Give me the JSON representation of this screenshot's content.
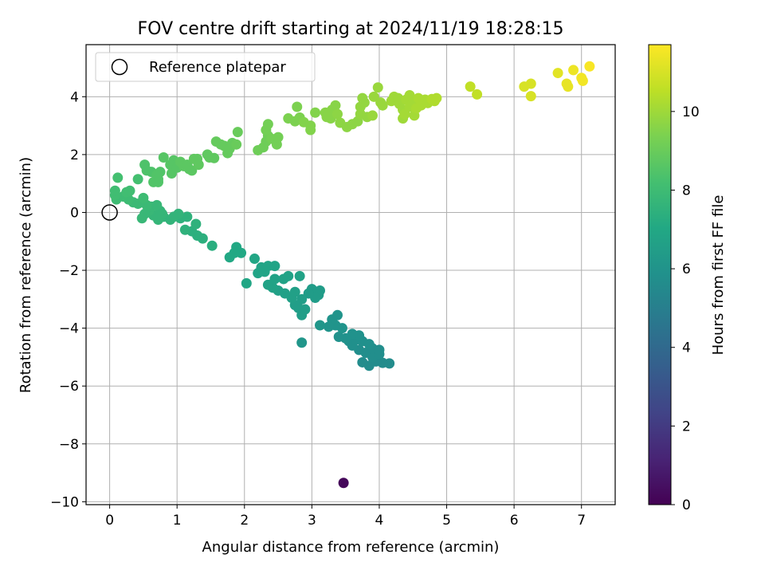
{
  "chart_data": {
    "type": "scatter",
    "title": "FOV centre drift starting at 2024/11/19 18:28:15",
    "xlabel": "Angular distance from reference (arcmin)",
    "ylabel": "Rotation from reference (arcmin)",
    "xlim": [
      -0.35,
      7.5
    ],
    "ylim": [
      -10.1,
      5.8
    ],
    "xticks": [
      0,
      1,
      2,
      3,
      4,
      5,
      6,
      7
    ],
    "yticks": [
      -10,
      -8,
      -6,
      -4,
      -2,
      0,
      2,
      4
    ],
    "xtick_labels": [
      "0",
      "1",
      "2",
      "3",
      "4",
      "5",
      "6",
      "7"
    ],
    "ytick_labels": [
      "−10",
      "−8",
      "−6",
      "−4",
      "−2",
      "0",
      "2",
      "4"
    ],
    "grid": true,
    "legend": {
      "position": "top-left",
      "entries": [
        "Reference platepar"
      ]
    },
    "reference_point": {
      "x": 0,
      "y": 0,
      "marker": "open-circle"
    },
    "colorbar": {
      "label": "Hours from first FF file",
      "colormap": "viridis",
      "range": [
        0,
        11.7
      ],
      "ticks": [
        0,
        2,
        4,
        6,
        8,
        10
      ],
      "tick_labels": [
        "0",
        "2",
        "4",
        "6",
        "8",
        "10"
      ]
    },
    "points": [
      {
        "x": 3.47,
        "y": -9.35,
        "c": 0.2
      },
      {
        "x": 4.15,
        "y": -5.22,
        "c": 5.6
      },
      {
        "x": 4.05,
        "y": -5.2,
        "c": 5.6
      },
      {
        "x": 3.95,
        "y": -5.15,
        "c": 5.6
      },
      {
        "x": 3.85,
        "y": -5.3,
        "c": 5.6
      },
      {
        "x": 3.75,
        "y": -5.18,
        "c": 5.6
      },
      {
        "x": 3.9,
        "y": -5.0,
        "c": 5.7
      },
      {
        "x": 4.0,
        "y": -4.9,
        "c": 5.7
      },
      {
        "x": 3.8,
        "y": -4.85,
        "c": 5.7
      },
      {
        "x": 3.7,
        "y": -4.75,
        "c": 5.7
      },
      {
        "x": 3.6,
        "y": -4.6,
        "c": 5.8
      },
      {
        "x": 3.9,
        "y": -4.7,
        "c": 5.7
      },
      {
        "x": 4.0,
        "y": -4.75,
        "c": 5.7
      },
      {
        "x": 3.55,
        "y": -4.45,
        "c": 5.8
      },
      {
        "x": 3.65,
        "y": -4.4,
        "c": 5.8
      },
      {
        "x": 3.75,
        "y": -4.45,
        "c": 5.8
      },
      {
        "x": 3.85,
        "y": -4.55,
        "c": 5.8
      },
      {
        "x": 3.7,
        "y": -4.25,
        "c": 5.9
      },
      {
        "x": 3.6,
        "y": -4.2,
        "c": 5.9
      },
      {
        "x": 3.5,
        "y": -4.35,
        "c": 5.9
      },
      {
        "x": 3.4,
        "y": -4.3,
        "c": 5.9
      },
      {
        "x": 3.45,
        "y": -4.0,
        "c": 6.0
      },
      {
        "x": 3.35,
        "y": -3.9,
        "c": 6.0
      },
      {
        "x": 3.3,
        "y": -3.7,
        "c": 6.0
      },
      {
        "x": 3.38,
        "y": -3.55,
        "c": 6.0
      },
      {
        "x": 3.25,
        "y": -3.95,
        "c": 6.0
      },
      {
        "x": 3.12,
        "y": -3.9,
        "c": 6.1
      },
      {
        "x": 2.85,
        "y": -4.5,
        "c": 6.1
      },
      {
        "x": 3.1,
        "y": -2.85,
        "c": 6.4
      },
      {
        "x": 3.0,
        "y": -2.65,
        "c": 6.4
      },
      {
        "x": 3.12,
        "y": -2.7,
        "c": 6.4
      },
      {
        "x": 3.05,
        "y": -2.95,
        "c": 6.4
      },
      {
        "x": 2.95,
        "y": -2.8,
        "c": 6.4
      },
      {
        "x": 2.85,
        "y": -3.0,
        "c": 6.5
      },
      {
        "x": 2.75,
        "y": -3.2,
        "c": 6.5
      },
      {
        "x": 2.9,
        "y": -3.35,
        "c": 6.5
      },
      {
        "x": 2.85,
        "y": -3.55,
        "c": 6.5
      },
      {
        "x": 2.8,
        "y": -3.3,
        "c": 6.5
      },
      {
        "x": 2.7,
        "y": -2.95,
        "c": 6.6
      },
      {
        "x": 2.6,
        "y": -2.8,
        "c": 6.6
      },
      {
        "x": 2.75,
        "y": -2.75,
        "c": 6.6
      },
      {
        "x": 2.5,
        "y": -2.7,
        "c": 6.6
      },
      {
        "x": 2.42,
        "y": -2.6,
        "c": 6.7
      },
      {
        "x": 2.35,
        "y": -2.5,
        "c": 6.7
      },
      {
        "x": 2.45,
        "y": -2.3,
        "c": 6.7
      },
      {
        "x": 2.65,
        "y": -2.2,
        "c": 6.7
      },
      {
        "x": 2.82,
        "y": -2.2,
        "c": 6.7
      },
      {
        "x": 2.58,
        "y": -2.3,
        "c": 6.7
      },
      {
        "x": 2.3,
        "y": -2.05,
        "c": 6.8
      },
      {
        "x": 2.2,
        "y": -2.1,
        "c": 6.8
      },
      {
        "x": 2.25,
        "y": -1.9,
        "c": 6.8
      },
      {
        "x": 2.35,
        "y": -1.85,
        "c": 6.8
      },
      {
        "x": 2.45,
        "y": -1.85,
        "c": 6.8
      },
      {
        "x": 2.15,
        "y": -1.6,
        "c": 6.9
      },
      {
        "x": 2.03,
        "y": -2.45,
        "c": 6.9
      },
      {
        "x": 1.95,
        "y": -1.4,
        "c": 7.0
      },
      {
        "x": 1.88,
        "y": -1.2,
        "c": 7.0
      },
      {
        "x": 1.85,
        "y": -1.4,
        "c": 7.0
      },
      {
        "x": 1.78,
        "y": -1.55,
        "c": 7.0
      },
      {
        "x": 1.52,
        "y": -1.15,
        "c": 7.3
      },
      {
        "x": 1.38,
        "y": -0.9,
        "c": 7.4
      },
      {
        "x": 1.3,
        "y": -0.8,
        "c": 7.4
      },
      {
        "x": 1.22,
        "y": -0.65,
        "c": 7.4
      },
      {
        "x": 1.28,
        "y": -0.4,
        "c": 7.5
      },
      {
        "x": 1.12,
        "y": -0.6,
        "c": 7.5
      },
      {
        "x": 1.05,
        "y": -0.2,
        "c": 7.5
      },
      {
        "x": 1.15,
        "y": -0.15,
        "c": 7.5
      },
      {
        "x": 1.02,
        "y": -0.05,
        "c": 7.6
      },
      {
        "x": 0.9,
        "y": -0.25,
        "c": 7.6
      },
      {
        "x": 0.95,
        "y": -0.15,
        "c": 7.6
      },
      {
        "x": 0.8,
        "y": -0.15,
        "c": 7.6
      },
      {
        "x": 0.78,
        "y": -0.05,
        "c": 7.7
      },
      {
        "x": 0.72,
        "y": -0.25,
        "c": 7.7
      },
      {
        "x": 0.65,
        "y": -0.1,
        "c": 7.7
      },
      {
        "x": 0.75,
        "y": 0.05,
        "c": 7.7
      },
      {
        "x": 0.58,
        "y": 0.05,
        "c": 7.8
      },
      {
        "x": 0.52,
        "y": -0.05,
        "c": 7.8
      },
      {
        "x": 0.48,
        "y": -0.2,
        "c": 7.8
      },
      {
        "x": 0.62,
        "y": 0.2,
        "c": 7.8
      },
      {
        "x": 0.7,
        "y": 0.25,
        "c": 7.8
      },
      {
        "x": 0.55,
        "y": 0.25,
        "c": 7.9
      },
      {
        "x": 0.5,
        "y": 0.35,
        "c": 7.9
      },
      {
        "x": 0.42,
        "y": 0.3,
        "c": 7.9
      },
      {
        "x": 0.35,
        "y": 0.35,
        "c": 7.9
      },
      {
        "x": 0.28,
        "y": 0.45,
        "c": 8.0
      },
      {
        "x": 0.5,
        "y": 0.5,
        "c": 8.0
      },
      {
        "x": 0.2,
        "y": 0.55,
        "c": 8.0
      },
      {
        "x": 0.1,
        "y": 0.45,
        "c": 8.0
      },
      {
        "x": 0.08,
        "y": 0.6,
        "c": 8.1
      },
      {
        "x": 0.25,
        "y": 0.7,
        "c": 8.1
      },
      {
        "x": 0.08,
        "y": 0.75,
        "c": 8.1
      },
      {
        "x": 0.3,
        "y": 0.75,
        "c": 8.1
      },
      {
        "x": 0.12,
        "y": 1.2,
        "c": 8.2
      },
      {
        "x": 0.42,
        "y": 1.15,
        "c": 8.2
      },
      {
        "x": 0.52,
        "y": 1.65,
        "c": 8.4
      },
      {
        "x": 0.55,
        "y": 1.45,
        "c": 8.4
      },
      {
        "x": 0.62,
        "y": 1.4,
        "c": 8.4
      },
      {
        "x": 0.7,
        "y": 1.3,
        "c": 8.5
      },
      {
        "x": 0.75,
        "y": 1.4,
        "c": 8.5
      },
      {
        "x": 0.72,
        "y": 1.15,
        "c": 8.5
      },
      {
        "x": 0.65,
        "y": 1.05,
        "c": 8.5
      },
      {
        "x": 0.72,
        "y": 1.05,
        "c": 8.5
      },
      {
        "x": 0.8,
        "y": 1.9,
        "c": 8.6
      },
      {
        "x": 0.95,
        "y": 1.8,
        "c": 8.6
      },
      {
        "x": 0.9,
        "y": 1.65,
        "c": 8.6
      },
      {
        "x": 0.92,
        "y": 1.35,
        "c": 8.6
      },
      {
        "x": 1.0,
        "y": 1.55,
        "c": 8.6
      },
      {
        "x": 1.05,
        "y": 1.75,
        "c": 8.7
      },
      {
        "x": 1.1,
        "y": 1.6,
        "c": 8.7
      },
      {
        "x": 1.15,
        "y": 1.65,
        "c": 8.7
      },
      {
        "x": 1.18,
        "y": 1.5,
        "c": 8.7
      },
      {
        "x": 1.22,
        "y": 1.45,
        "c": 8.7
      },
      {
        "x": 1.25,
        "y": 1.85,
        "c": 8.8
      },
      {
        "x": 1.3,
        "y": 1.85,
        "c": 8.8
      },
      {
        "x": 1.32,
        "y": 1.65,
        "c": 8.8
      },
      {
        "x": 1.45,
        "y": 2.0,
        "c": 8.8
      },
      {
        "x": 1.48,
        "y": 1.9,
        "c": 8.8
      },
      {
        "x": 1.55,
        "y": 1.88,
        "c": 8.8
      },
      {
        "x": 1.58,
        "y": 2.45,
        "c": 8.9
      },
      {
        "x": 1.65,
        "y": 2.35,
        "c": 8.9
      },
      {
        "x": 1.7,
        "y": 2.3,
        "c": 8.9
      },
      {
        "x": 1.75,
        "y": 2.05,
        "c": 8.9
      },
      {
        "x": 1.78,
        "y": 2.2,
        "c": 8.9
      },
      {
        "x": 1.82,
        "y": 2.4,
        "c": 8.9
      },
      {
        "x": 1.88,
        "y": 2.35,
        "c": 9.0
      },
      {
        "x": 1.9,
        "y": 2.78,
        "c": 9.0
      },
      {
        "x": 2.2,
        "y": 2.15,
        "c": 9.1
      },
      {
        "x": 2.28,
        "y": 2.25,
        "c": 9.1
      },
      {
        "x": 2.32,
        "y": 2.45,
        "c": 9.1
      },
      {
        "x": 2.35,
        "y": 2.65,
        "c": 9.1
      },
      {
        "x": 2.4,
        "y": 2.55,
        "c": 9.2
      },
      {
        "x": 2.32,
        "y": 2.85,
        "c": 9.2
      },
      {
        "x": 2.35,
        "y": 3.05,
        "c": 9.2
      },
      {
        "x": 2.48,
        "y": 2.35,
        "c": 9.2
      },
      {
        "x": 2.5,
        "y": 2.6,
        "c": 9.2
      },
      {
        "x": 2.65,
        "y": 3.25,
        "c": 9.4
      },
      {
        "x": 2.75,
        "y": 3.15,
        "c": 9.4
      },
      {
        "x": 2.82,
        "y": 3.28,
        "c": 9.4
      },
      {
        "x": 2.78,
        "y": 3.65,
        "c": 9.4
      },
      {
        "x": 2.88,
        "y": 3.12,
        "c": 9.5
      },
      {
        "x": 2.98,
        "y": 3.0,
        "c": 9.5
      },
      {
        "x": 2.98,
        "y": 2.85,
        "c": 9.5
      },
      {
        "x": 3.05,
        "y": 3.45,
        "c": 9.5
      },
      {
        "x": 3.2,
        "y": 3.45,
        "c": 9.6
      },
      {
        "x": 3.22,
        "y": 3.3,
        "c": 9.6
      },
      {
        "x": 3.28,
        "y": 3.25,
        "c": 9.6
      },
      {
        "x": 3.3,
        "y": 3.55,
        "c": 9.6
      },
      {
        "x": 3.35,
        "y": 3.7,
        "c": 9.6
      },
      {
        "x": 3.38,
        "y": 3.4,
        "c": 9.7
      },
      {
        "x": 3.42,
        "y": 3.1,
        "c": 9.7
      },
      {
        "x": 3.52,
        "y": 2.95,
        "c": 9.7
      },
      {
        "x": 3.6,
        "y": 3.05,
        "c": 9.7
      },
      {
        "x": 3.68,
        "y": 3.15,
        "c": 9.7
      },
      {
        "x": 3.72,
        "y": 3.4,
        "c": 9.8
      },
      {
        "x": 3.72,
        "y": 3.65,
        "c": 9.8
      },
      {
        "x": 3.78,
        "y": 3.8,
        "c": 9.8
      },
      {
        "x": 3.75,
        "y": 3.95,
        "c": 9.8
      },
      {
        "x": 3.82,
        "y": 3.3,
        "c": 9.8
      },
      {
        "x": 3.9,
        "y": 3.35,
        "c": 9.9
      },
      {
        "x": 3.92,
        "y": 4.0,
        "c": 9.9
      },
      {
        "x": 3.98,
        "y": 4.32,
        "c": 9.9
      },
      {
        "x": 4.02,
        "y": 3.8,
        "c": 9.9
      },
      {
        "x": 4.05,
        "y": 3.7,
        "c": 9.9
      },
      {
        "x": 4.18,
        "y": 3.85,
        "c": 10.0
      },
      {
        "x": 4.22,
        "y": 4.0,
        "c": 10.0
      },
      {
        "x": 4.28,
        "y": 3.95,
        "c": 10.0
      },
      {
        "x": 4.3,
        "y": 3.75,
        "c": 10.0
      },
      {
        "x": 4.35,
        "y": 3.55,
        "c": 10.0
      },
      {
        "x": 4.35,
        "y": 3.25,
        "c": 10.0
      },
      {
        "x": 4.38,
        "y": 3.4,
        "c": 10.1
      },
      {
        "x": 4.4,
        "y": 3.9,
        "c": 10.1
      },
      {
        "x": 4.45,
        "y": 3.65,
        "c": 10.1
      },
      {
        "x": 4.45,
        "y": 4.05,
        "c": 10.1
      },
      {
        "x": 4.5,
        "y": 3.8,
        "c": 10.1
      },
      {
        "x": 4.52,
        "y": 3.35,
        "c": 10.1
      },
      {
        "x": 4.55,
        "y": 3.6,
        "c": 10.2
      },
      {
        "x": 4.58,
        "y": 3.95,
        "c": 10.2
      },
      {
        "x": 4.62,
        "y": 3.7,
        "c": 10.2
      },
      {
        "x": 4.68,
        "y": 3.9,
        "c": 10.2
      },
      {
        "x": 4.72,
        "y": 3.78,
        "c": 10.2
      },
      {
        "x": 4.78,
        "y": 3.92,
        "c": 10.3
      },
      {
        "x": 4.82,
        "y": 3.85,
        "c": 10.3
      },
      {
        "x": 4.85,
        "y": 3.95,
        "c": 10.3
      },
      {
        "x": 5.35,
        "y": 4.35,
        "c": 10.6
      },
      {
        "x": 5.45,
        "y": 4.08,
        "c": 10.6
      },
      {
        "x": 6.15,
        "y": 4.35,
        "c": 11.0
      },
      {
        "x": 6.25,
        "y": 4.45,
        "c": 11.0
      },
      {
        "x": 6.25,
        "y": 4.02,
        "c": 11.0
      },
      {
        "x": 6.65,
        "y": 4.82,
        "c": 11.2
      },
      {
        "x": 6.78,
        "y": 4.45,
        "c": 11.3
      },
      {
        "x": 6.8,
        "y": 4.35,
        "c": 11.3
      },
      {
        "x": 6.88,
        "y": 4.92,
        "c": 11.4
      },
      {
        "x": 7.0,
        "y": 4.65,
        "c": 11.5
      },
      {
        "x": 7.02,
        "y": 4.55,
        "c": 11.5
      },
      {
        "x": 7.12,
        "y": 5.05,
        "c": 11.6
      }
    ]
  }
}
